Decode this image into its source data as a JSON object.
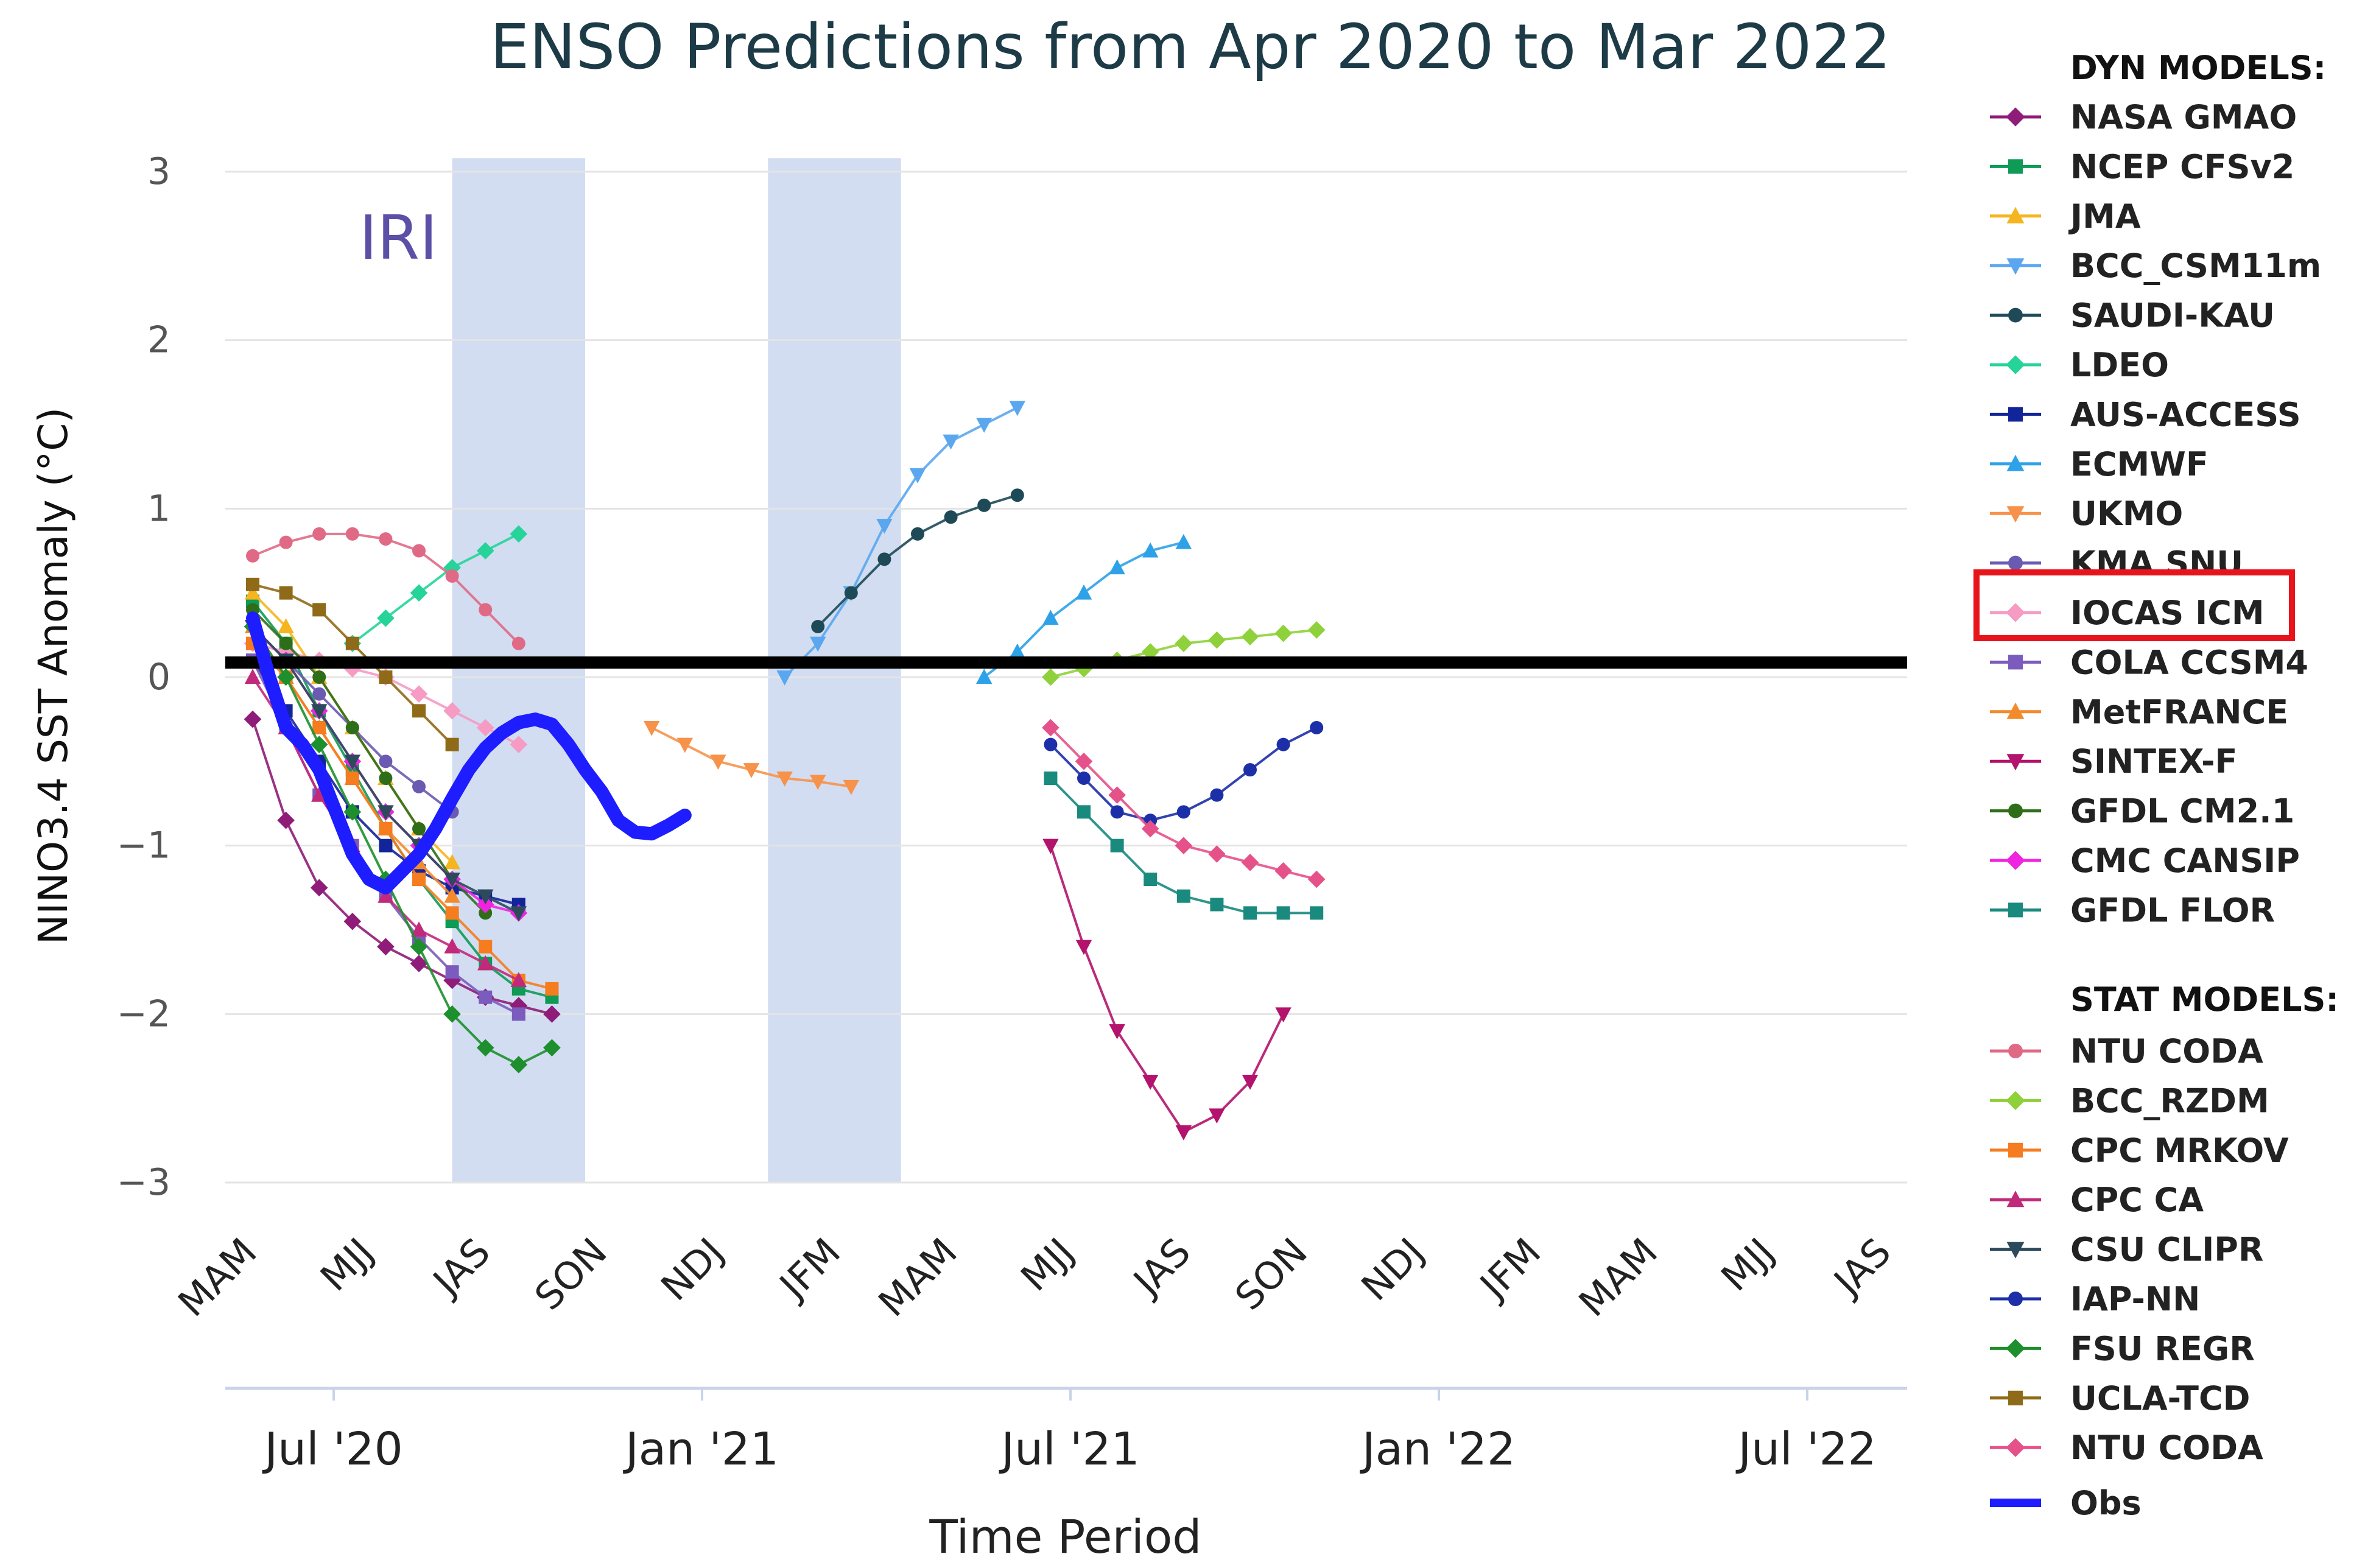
{
  "chart_data": {
    "type": "line",
    "title": "ENSO Predictions from Apr 2020 to Mar 2022",
    "annotation": "IRI",
    "xlabel": "Time Period",
    "ylabel": "NINO3.4 SST Anomaly (°C)",
    "ylim": [
      -3,
      3
    ],
    "yticks": [
      "3",
      "2",
      "1",
      "0",
      "−1",
      "−2",
      "−3"
    ],
    "season_labels": [
      "MAM",
      "MJJ",
      "JAS",
      "SON",
      "NDJ",
      "JFM",
      "MAM",
      "MJJ",
      "JAS",
      "SON",
      "NDJ",
      "JFM",
      "MAM",
      "MJJ",
      "JAS"
    ],
    "date_labels": [
      "Jul '20",
      "Jan '21",
      "Jul '21",
      "Jan '22",
      "Jul '22"
    ],
    "shaded_periods": [
      [
        6,
        10
      ],
      [
        15.5,
        19.5
      ]
    ],
    "grid": true,
    "obs": {
      "name": "Obs",
      "color": "#1d1dff",
      "x": [
        0,
        0.5,
        1,
        1.5,
        2,
        2.5,
        3,
        3.5,
        4,
        4.5,
        5,
        5.5,
        6,
        6.5,
        7,
        7.5,
        8,
        8.5,
        9,
        9.5,
        10,
        10.5,
        11,
        11.5,
        12,
        12.5,
        13
      ],
      "values": [
        0.35,
        0.0,
        -0.3,
        -0.4,
        -0.55,
        -0.8,
        -1.05,
        -1.2,
        -1.25,
        -1.15,
        -1.05,
        -0.9,
        -0.72,
        -0.55,
        -0.42,
        -0.33,
        -0.27,
        -0.25,
        -0.28,
        -0.4,
        -0.55,
        -0.68,
        -0.85,
        -0.92,
        -0.93,
        -0.88,
        -0.82
      ]
    },
    "series": [
      {
        "name": "NASA GMAO",
        "color": "#8e1c78",
        "marker": "diamond",
        "x": [
          0,
          1,
          2,
          3,
          4,
          5,
          6,
          7,
          8,
          9
        ],
        "values": [
          -0.25,
          -0.85,
          -1.25,
          -1.45,
          -1.6,
          -1.7,
          -1.8,
          -1.9,
          -1.95,
          -2.0
        ]
      },
      {
        "name": "NCEP CFSv2",
        "color": "#0f9a55",
        "marker": "square",
        "x": [
          0,
          1,
          2,
          3,
          4,
          5,
          6,
          7,
          8,
          9
        ],
        "values": [
          0.45,
          0.2,
          -0.2,
          -0.55,
          -0.9,
          -1.2,
          -1.45,
          -1.7,
          -1.85,
          -1.9
        ]
      },
      {
        "name": "JMA",
        "color": "#f5b51e",
        "marker": "triangle",
        "x": [
          0,
          1,
          2,
          3,
          4,
          5,
          6
        ],
        "values": [
          0.5,
          0.3,
          0.0,
          -0.3,
          -0.6,
          -0.9,
          -1.1
        ]
      },
      {
        "name": "BCC_CSM11m",
        "color": "#5aa7ef",
        "marker": "triangle-down",
        "x": [
          16,
          17,
          18,
          19,
          20,
          21,
          22,
          23
        ],
        "values": [
          0.0,
          0.2,
          0.5,
          0.9,
          1.2,
          1.4,
          1.5,
          1.6
        ]
      },
      {
        "name": "SAUDI-KAU",
        "color": "#1e4a58",
        "marker": "circle",
        "x": [
          17,
          18,
          19,
          20,
          21,
          22,
          23
        ],
        "values": [
          0.3,
          0.5,
          0.7,
          0.85,
          0.95,
          1.02,
          1.08
        ]
      },
      {
        "name": "LDEO",
        "color": "#26d49a",
        "marker": "diamond",
        "x": [
          3,
          4,
          5,
          6,
          7,
          8
        ],
        "values": [
          0.2,
          0.35,
          0.5,
          0.65,
          0.75,
          0.85
        ]
      },
      {
        "name": "AUS-ACCESS",
        "color": "#12249a",
        "marker": "square",
        "x": [
          0,
          1,
          2,
          3,
          4,
          5,
          6,
          7,
          8
        ],
        "values": [
          0.1,
          -0.2,
          -0.5,
          -0.8,
          -1.0,
          -1.15,
          -1.25,
          -1.3,
          -1.35
        ]
      },
      {
        "name": "ECMWF",
        "color": "#2ea2e8",
        "marker": "triangle",
        "x": [
          22,
          23,
          24,
          25,
          26,
          27,
          28
        ],
        "values": [
          0.0,
          0.15,
          0.35,
          0.5,
          0.65,
          0.75,
          0.8
        ]
      },
      {
        "name": "UKMO",
        "color": "#f7924a",
        "marker": "triangle-down",
        "x": [
          12,
          13,
          14,
          15,
          16,
          17,
          18
        ],
        "values": [
          -0.3,
          -0.4,
          -0.5,
          -0.55,
          -0.6,
          -0.62,
          -0.65
        ]
      },
      {
        "name": "KMA SNU",
        "color": "#6b5ab1",
        "marker": "circle",
        "x": [
          0,
          1,
          2,
          3,
          4,
          5,
          6
        ],
        "values": [
          0.3,
          0.1,
          -0.1,
          -0.3,
          -0.5,
          -0.65,
          -0.8
        ]
      },
      {
        "name": "IOCAS ICM",
        "color": "#f59bc4",
        "marker": "diamond",
        "x": [
          0,
          1,
          2,
          3,
          4,
          5,
          6,
          7,
          8
        ],
        "values": [
          0.2,
          0.15,
          0.1,
          0.05,
          0.0,
          -0.1,
          -0.2,
          -0.3,
          -0.4
        ]
      },
      {
        "name": "COLA CCSM4",
        "color": "#7b5bbd",
        "marker": "square",
        "x": [
          0,
          1,
          2,
          3,
          4,
          5,
          6,
          7,
          8
        ],
        "values": [
          0.1,
          -0.3,
          -0.7,
          -1.0,
          -1.3,
          -1.55,
          -1.75,
          -1.9,
          -2.0
        ]
      },
      {
        "name": "MetFRANCE",
        "color": "#f38b2c",
        "marker": "triangle",
        "x": [
          0,
          1,
          2,
          3,
          4,
          5,
          6
        ],
        "values": [
          0.3,
          0.0,
          -0.3,
          -0.6,
          -0.9,
          -1.1,
          -1.3
        ]
      },
      {
        "name": "SINTEX-F",
        "color": "#b3136c",
        "marker": "triangle-down",
        "x": [
          24,
          25,
          26,
          27,
          28,
          29,
          30,
          31
        ],
        "values": [
          -1.0,
          -1.6,
          -2.1,
          -2.4,
          -2.7,
          -2.6,
          -2.4,
          -2.0
        ]
      },
      {
        "name": "GFDL CM2.1",
        "color": "#2f6e18",
        "marker": "circle",
        "x": [
          0,
          1,
          2,
          3,
          4,
          5,
          6,
          7
        ],
        "values": [
          0.4,
          0.2,
          0.0,
          -0.3,
          -0.6,
          -0.9,
          -1.2,
          -1.4
        ]
      },
      {
        "name": "CMC CANSIP",
        "color": "#f024e0",
        "marker": "diamond",
        "x": [
          0,
          1,
          2,
          3,
          4,
          5,
          6,
          7,
          8
        ],
        "values": [
          0.3,
          0.1,
          -0.2,
          -0.5,
          -0.8,
          -1.0,
          -1.2,
          -1.35,
          -1.4
        ]
      },
      {
        "name": "GFDL FLOR",
        "color": "#1a8a7e",
        "marker": "square",
        "x": [
          24,
          25,
          26,
          27,
          28,
          29,
          30,
          31,
          32
        ],
        "values": [
          -0.6,
          -0.8,
          -1.0,
          -1.2,
          -1.3,
          -1.35,
          -1.4,
          -1.4,
          -1.4
        ]
      },
      {
        "name": "NTU CODA",
        "color": "#e06a86",
        "marker": "circle",
        "x": [
          0,
          1,
          2,
          3,
          4,
          5,
          6,
          7,
          8
        ],
        "values": [
          0.72,
          0.8,
          0.85,
          0.85,
          0.82,
          0.75,
          0.6,
          0.4,
          0.2
        ]
      },
      {
        "name": "BCC_RZDM",
        "color": "#8fd13a",
        "marker": "diamond",
        "x": [
          24,
          25,
          26,
          27,
          28,
          29,
          30,
          31,
          32
        ],
        "values": [
          0.0,
          0.05,
          0.1,
          0.15,
          0.2,
          0.22,
          0.24,
          0.26,
          0.28
        ]
      },
      {
        "name": "CPC MRKOV",
        "color": "#f57c1f",
        "marker": "square",
        "x": [
          0,
          1,
          2,
          3,
          4,
          5,
          6,
          7,
          8,
          9
        ],
        "values": [
          0.2,
          0.0,
          -0.3,
          -0.6,
          -0.9,
          -1.2,
          -1.4,
          -1.6,
          -1.8,
          -1.85
        ]
      },
      {
        "name": "CPC CA",
        "color": "#c12a7b",
        "marker": "triangle",
        "x": [
          0,
          1,
          2,
          3,
          4,
          5,
          6,
          7,
          8
        ],
        "values": [
          0.0,
          -0.3,
          -0.7,
          -1.0,
          -1.3,
          -1.5,
          -1.6,
          -1.7,
          -1.8
        ]
      },
      {
        "name": "CSU CLIPR",
        "color": "#2b4a5c",
        "marker": "triangle-down",
        "x": [
          0,
          1,
          2,
          3,
          4,
          5,
          6,
          7,
          8
        ],
        "values": [
          0.3,
          0.1,
          -0.2,
          -0.5,
          -0.8,
          -1.0,
          -1.2,
          -1.3,
          -1.4
        ]
      },
      {
        "name": "IAP-NN",
        "color": "#1d2fa8",
        "marker": "circle",
        "x": [
          24,
          25,
          26,
          27,
          28,
          29,
          30,
          31,
          32
        ],
        "values": [
          -0.4,
          -0.6,
          -0.8,
          -0.85,
          -0.8,
          -0.7,
          -0.55,
          -0.4,
          -0.3
        ]
      },
      {
        "name": "FSU REGR",
        "color": "#1e8f2d",
        "marker": "diamond",
        "x": [
          0,
          1,
          2,
          3,
          4,
          5,
          6,
          7,
          8,
          9
        ],
        "values": [
          0.3,
          0.0,
          -0.4,
          -0.8,
          -1.2,
          -1.6,
          -2.0,
          -2.2,
          -2.3,
          -2.2
        ]
      },
      {
        "name": "UCLA-TCD",
        "color": "#8f6a18",
        "marker": "square",
        "x": [
          0,
          1,
          2,
          3,
          4,
          5,
          6
        ],
        "values": [
          0.55,
          0.5,
          0.4,
          0.2,
          0.0,
          -0.2,
          -0.4
        ]
      },
      {
        "name": "NTU CODA",
        "color": "#e5528a",
        "marker": "diamond",
        "x": [
          24,
          25,
          26,
          27,
          28,
          29,
          30,
          31,
          32
        ],
        "values": [
          -0.3,
          -0.5,
          -0.7,
          -0.9,
          -1.0,
          -1.05,
          -1.1,
          -1.15,
          -1.2
        ]
      }
    ]
  },
  "legend": {
    "dyn_header": "DYN MODELS:",
    "stat_header": "STAT MODELS:",
    "dyn": [
      {
        "name": "NASA GMAO",
        "color": "#8e1c78",
        "marker": "diamond"
      },
      {
        "name": "NCEP CFSv2",
        "color": "#0f9a55",
        "marker": "square"
      },
      {
        "name": "JMA",
        "color": "#f5b51e",
        "marker": "triangle"
      },
      {
        "name": "BCC_CSM11m",
        "color": "#5aa7ef",
        "marker": "triangle-down"
      },
      {
        "name": "SAUDI-KAU",
        "color": "#1e4a58",
        "marker": "circle"
      },
      {
        "name": "LDEO",
        "color": "#26d49a",
        "marker": "diamond"
      },
      {
        "name": "AUS-ACCESS",
        "color": "#12249a",
        "marker": "square"
      },
      {
        "name": "ECMWF",
        "color": "#2ea2e8",
        "marker": "triangle"
      },
      {
        "name": "UKMO",
        "color": "#f7924a",
        "marker": "triangle-down"
      },
      {
        "name": "KMA SNU",
        "color": "#6b5ab1",
        "marker": "circle"
      },
      {
        "name": "IOCAS ICM",
        "color": "#f59bc4",
        "marker": "diamond"
      },
      {
        "name": "COLA CCSM4",
        "color": "#7b5bbd",
        "marker": "square"
      },
      {
        "name": "MetFRANCE",
        "color": "#f38b2c",
        "marker": "triangle"
      },
      {
        "name": "SINTEX-F",
        "color": "#b3136c",
        "marker": "triangle-down"
      },
      {
        "name": "GFDL CM2.1",
        "color": "#2f6e18",
        "marker": "circle"
      },
      {
        "name": "CMC CANSIP",
        "color": "#f024e0",
        "marker": "diamond"
      },
      {
        "name": "GFDL FLOR",
        "color": "#1a8a7e",
        "marker": "square"
      }
    ],
    "stat": [
      {
        "name": "NTU CODA",
        "color": "#e06a86",
        "marker": "circle"
      },
      {
        "name": "BCC_RZDM",
        "color": "#8fd13a",
        "marker": "diamond"
      },
      {
        "name": "CPC MRKOV",
        "color": "#f57c1f",
        "marker": "square"
      },
      {
        "name": "CPC CA",
        "color": "#c12a7b",
        "marker": "triangle"
      },
      {
        "name": "CSU CLIPR",
        "color": "#2b4a5c",
        "marker": "triangle-down"
      },
      {
        "name": "IAP-NN",
        "color": "#1d2fa8",
        "marker": "circle"
      },
      {
        "name": "FSU REGR",
        "color": "#1e8f2d",
        "marker": "diamond"
      },
      {
        "name": "UCLA-TCD",
        "color": "#8f6a18",
        "marker": "square"
      },
      {
        "name": "NTU CODA",
        "color": "#e5528a",
        "marker": "diamond"
      }
    ],
    "obs_label": "Obs",
    "obs_color": "#1d1dff",
    "highlighted": "IOCAS ICM",
    "highlight_color": "#e8141c"
  }
}
